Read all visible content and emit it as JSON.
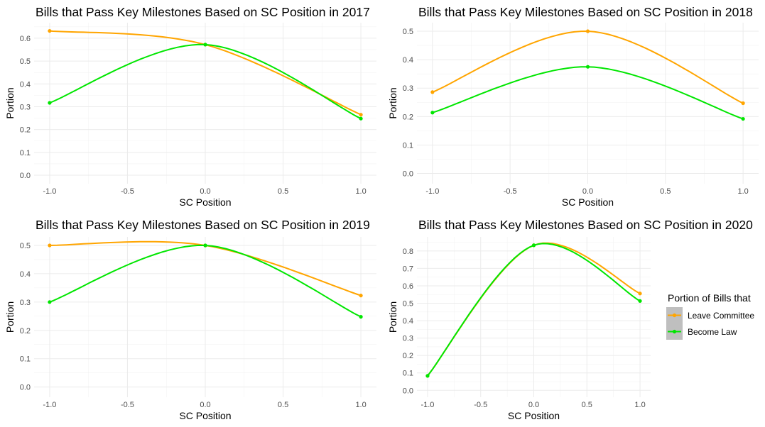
{
  "legend": {
    "title": "Portion of Bills that",
    "items": [
      {
        "label": "Leave Committee",
        "color": "#FFA500"
      },
      {
        "label": "Become Law",
        "color": "#00E600"
      }
    ]
  },
  "chart_data": [
    {
      "type": "line",
      "title": "Bills that Pass Key Milestones Based on SC Position in 2017",
      "xlabel": "SC Position",
      "ylabel": "Portion",
      "xlim": [
        -1.0,
        1.0
      ],
      "ylim": [
        0.0,
        0.6
      ],
      "xticks": [
        "-1.0",
        "-0.5",
        "0.0",
        "0.5",
        "1.0"
      ],
      "yticks": [
        "0.0",
        "0.1",
        "0.2",
        "0.3",
        "0.4",
        "0.5",
        "0.6"
      ],
      "grid": true,
      "x": [
        -1.0,
        0.0,
        1.0
      ],
      "series": [
        {
          "name": "Leave Committee",
          "color": "#FFA500",
          "values": [
            0.632,
            0.572,
            0.265
          ]
        },
        {
          "name": "Become Law",
          "color": "#00E600",
          "values": [
            0.317,
            0.572,
            0.248
          ]
        }
      ]
    },
    {
      "type": "line",
      "title": "Bills that Pass Key Milestones Based on SC Position in 2018",
      "xlabel": "SC Position",
      "ylabel": "Portion",
      "xlim": [
        -1.0,
        1.0
      ],
      "ylim": [
        0.0,
        0.5
      ],
      "xticks": [
        "-1.0",
        "-0.5",
        "0.0",
        "0.5",
        "1.0"
      ],
      "yticks": [
        "0.0",
        "0.1",
        "0.2",
        "0.3",
        "0.4",
        "0.5"
      ],
      "grid": true,
      "x": [
        -1.0,
        0.0,
        1.0
      ],
      "series": [
        {
          "name": "Leave Committee",
          "color": "#FFA500",
          "values": [
            0.286,
            0.5,
            0.247
          ]
        },
        {
          "name": "Become Law",
          "color": "#00E600",
          "values": [
            0.214,
            0.375,
            0.192
          ]
        }
      ]
    },
    {
      "type": "line",
      "title": "Bills that Pass Key Milestones Based on SC Position in 2019",
      "xlabel": "SC Position",
      "ylabel": "Portion",
      "xlim": [
        -1.0,
        1.0
      ],
      "ylim": [
        0.0,
        0.5
      ],
      "xticks": [
        "-1.0",
        "-0.5",
        "0.0",
        "0.5",
        "1.0"
      ],
      "yticks": [
        "0.0",
        "0.1",
        "0.2",
        "0.3",
        "0.4",
        "0.5"
      ],
      "grid": true,
      "x": [
        -1.0,
        0.0,
        1.0
      ],
      "series": [
        {
          "name": "Leave Committee",
          "color": "#FFA500",
          "values": [
            0.5,
            0.5,
            0.323
          ]
        },
        {
          "name": "Become Law",
          "color": "#00E600",
          "values": [
            0.3,
            0.5,
            0.248
          ]
        }
      ]
    },
    {
      "type": "line",
      "title": "Bills that Pass Key Milestones Based on SC Position in 2020",
      "xlabel": "SC Position",
      "ylabel": "Portion",
      "xlim": [
        -1.0,
        1.0
      ],
      "ylim": [
        0.0,
        0.8
      ],
      "xticks": [
        "-1.0",
        "-0.5",
        "0.0",
        "0.5",
        "1.0"
      ],
      "yticks": [
        "0.0",
        "0.1",
        "0.2",
        "0.3",
        "0.4",
        "0.5",
        "0.6",
        "0.7",
        "0.8"
      ],
      "grid": true,
      "x": [
        -1.0,
        0.0,
        1.0
      ],
      "series": [
        {
          "name": "Leave Committee",
          "color": "#FFA500",
          "values": [
            0.083,
            0.833,
            0.556
          ]
        },
        {
          "name": "Become Law",
          "color": "#00E600",
          "values": [
            0.083,
            0.833,
            0.513
          ]
        }
      ]
    }
  ]
}
